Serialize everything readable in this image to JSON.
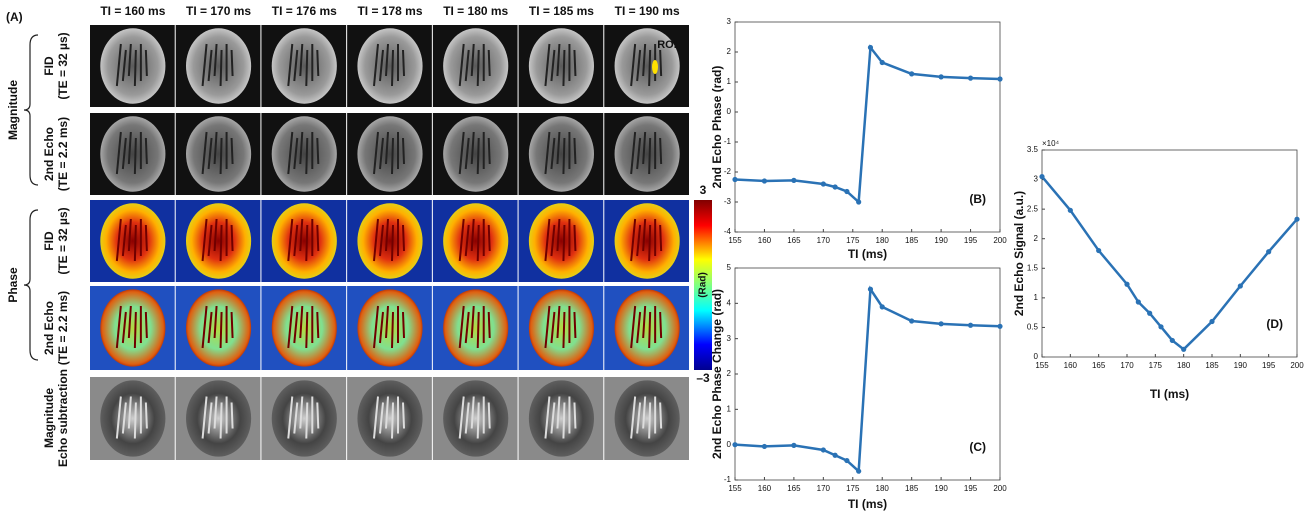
{
  "panel_a": {
    "label": "(A)",
    "columns": [
      "TI = 160 ms",
      "TI = 170 ms",
      "TI = 176 ms",
      "TI = 178 ms",
      "TI = 180 ms",
      "TI = 185 ms",
      "TI = 190 ms"
    ],
    "roi_label": "ROI",
    "groups": [
      {
        "label": "Magnitude",
        "rows": [
          {
            "line1": "FID",
            "line2": "(TE = 32 µs)"
          },
          {
            "line1": "2nd Echo",
            "line2": "(TE = 2.2 ms)"
          }
        ]
      },
      {
        "label": "Phase",
        "rows": [
          {
            "line1": "FID",
            "line2": "(TE = 32 µs)"
          },
          {
            "line1": "2nd Echo",
            "line2": "(TE = 2.2 ms)"
          }
        ]
      }
    ],
    "subtraction_row": {
      "line1": "Magnitude",
      "line2": "Echo subtraction"
    },
    "colorbar": {
      "label": "(Rad)",
      "max": 3,
      "min": {
        "value": -3,
        "label": "–3"
      }
    }
  },
  "chart_data": [
    {
      "type": "line",
      "annotation": "(B)",
      "xlabel": "TI (ms)",
      "ylabel": "2nd Echo Phase (rad)",
      "color": "#2a72b5",
      "x": [
        155,
        160,
        165,
        170,
        172,
        174,
        176,
        178,
        180,
        185,
        190,
        195,
        200
      ],
      "values": [
        -2.25,
        -2.3,
        -2.28,
        -2.4,
        -2.5,
        -2.65,
        -3.0,
        2.15,
        1.65,
        1.27,
        1.17,
        1.13,
        1.1
      ],
      "xlim": [
        155,
        200
      ],
      "xticks": [
        155,
        160,
        165,
        170,
        175,
        180,
        185,
        190,
        195,
        200
      ],
      "ylim": [
        -4,
        3
      ],
      "yticks": [
        -4,
        -3,
        -2,
        -1,
        0,
        1,
        2,
        3
      ]
    },
    {
      "type": "line",
      "annotation": "(C)",
      "xlabel": "TI (ms)",
      "ylabel": "2nd Echo Phase Change (rad)",
      "color": "#2a72b5",
      "x": [
        155,
        160,
        165,
        170,
        172,
        174,
        176,
        178,
        180,
        185,
        190,
        195,
        200
      ],
      "values": [
        0,
        -0.05,
        -0.02,
        -0.15,
        -0.3,
        -0.45,
        -0.75,
        4.4,
        3.9,
        3.5,
        3.42,
        3.38,
        3.35
      ],
      "xlim": [
        155,
        200
      ],
      "xticks": [
        155,
        160,
        165,
        170,
        175,
        180,
        185,
        190,
        195,
        200
      ],
      "ylim": [
        -1,
        5
      ],
      "yticks": [
        -1,
        0,
        1,
        2,
        3,
        4,
        5
      ]
    },
    {
      "type": "line",
      "annotation": "(D)",
      "xlabel": "TI (ms)",
      "ylabel": "2nd Echo Signal (a.u.)",
      "color": "#2a72b5",
      "y_multiplier": "×10⁴",
      "x": [
        155,
        160,
        165,
        170,
        172,
        174,
        176,
        178,
        180,
        185,
        190,
        195,
        200
      ],
      "values": [
        30500,
        24800,
        18000,
        12300,
        9300,
        7400,
        5100,
        2800,
        1300,
        6000,
        12000,
        17800,
        23300
      ],
      "xlim": [
        155,
        200
      ],
      "xticks": [
        155,
        160,
        165,
        170,
        175,
        180,
        185,
        190,
        195,
        200
      ],
      "ylim": [
        0,
        35000
      ],
      "yticks": [
        0,
        {
          "value": 5000,
          "label": "0.5"
        },
        {
          "value": 10000,
          "label": "1"
        },
        {
          "value": 15000,
          "label": "1.5"
        },
        {
          "value": 20000,
          "label": "2"
        },
        {
          "value": 25000,
          "label": "2.5"
        },
        {
          "value": 30000,
          "label": "3"
        },
        {
          "value": 35000,
          "label": "3.5"
        }
      ]
    }
  ]
}
